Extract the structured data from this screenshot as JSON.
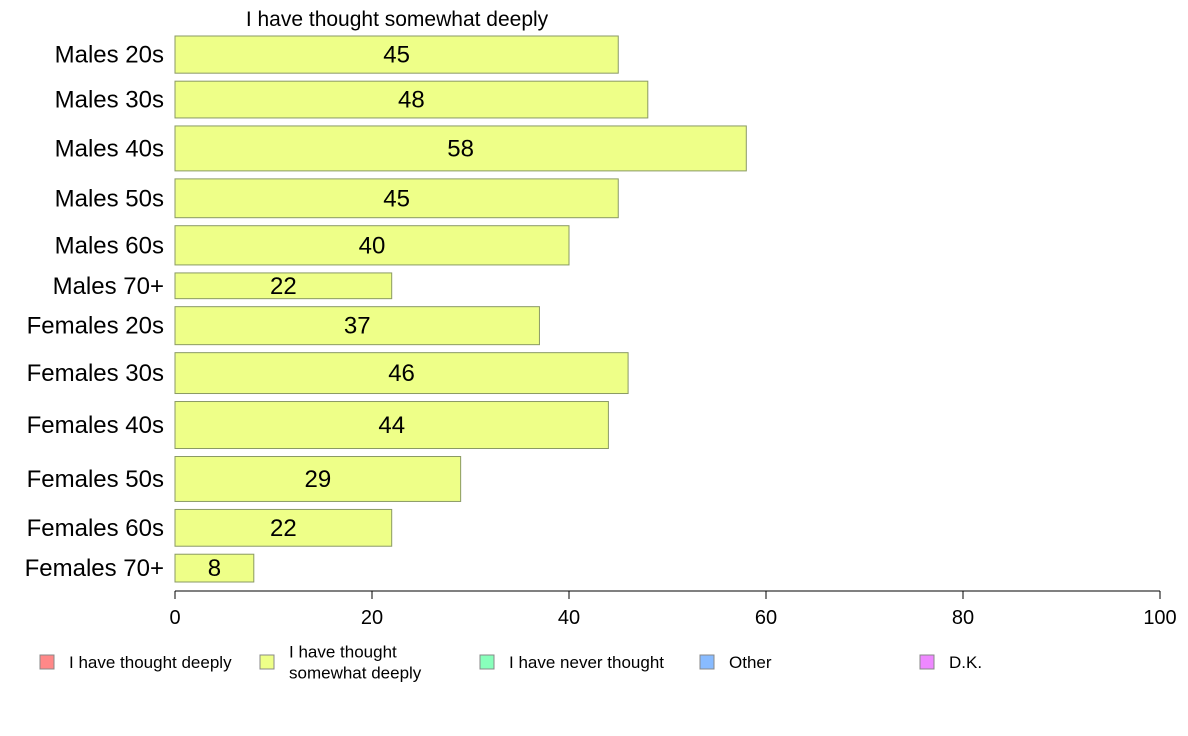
{
  "chart_data": {
    "type": "bar",
    "orientation": "horizontal",
    "title": "I have thought somewhat deeply",
    "categories": [
      "Males 20s",
      "Males 30s",
      "Males 40s",
      "Males 50s",
      "Males 60s",
      "Males 70+",
      "Females 20s",
      "Females 30s",
      "Females 40s",
      "Females 50s",
      "Females 60s",
      "Females 70+"
    ],
    "weights": [
      0.91,
      0.9,
      1.1,
      0.95,
      0.96,
      0.63,
      0.93,
      1.0,
      1.15,
      1.1,
      0.9,
      0.68
    ],
    "series": [
      {
        "name": "I have thought somewhat deeply",
        "values": [
          45,
          48,
          58,
          45,
          40,
          22,
          37,
          46,
          44,
          29,
          22,
          8
        ],
        "color": "#eeff88"
      }
    ],
    "xlim": [
      0,
      100
    ],
    "xticks": [
      "0",
      "20",
      "40",
      "60",
      "80",
      "100"
    ],
    "grid": false,
    "legend": {
      "placement": "bottom",
      "entries": [
        {
          "label_lines": [
            "I have thought deeply"
          ],
          "color": "#ff8888"
        },
        {
          "label_lines": [
            "I have thought",
            "somewhat deeply"
          ],
          "color": "#eeff88"
        },
        {
          "label_lines": [
            "I have never thought"
          ],
          "color": "#88ffbb"
        },
        {
          "label_lines": [
            "Other"
          ],
          "color": "#88bbff"
        },
        {
          "label_lines": [
            "D.K."
          ],
          "color": "#ee88ff"
        }
      ]
    }
  }
}
